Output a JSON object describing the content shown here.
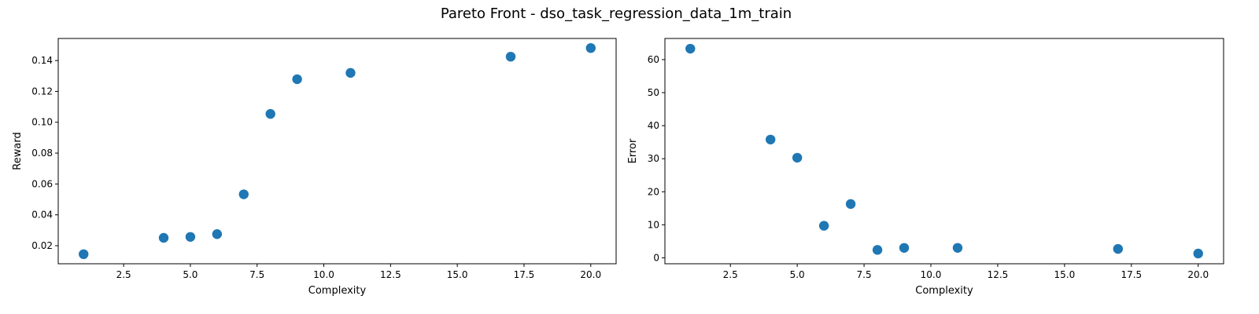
{
  "figure": {
    "title": "Pareto Front - dso_task_regression_data_1m_train"
  },
  "colors": {
    "marker": "#1f77b4",
    "axes": "#000000",
    "background": "#ffffff"
  },
  "chart_data": [
    {
      "type": "scatter",
      "title": "",
      "xlabel": "Complexity",
      "ylabel": "Reward",
      "grid": false,
      "xlim": [
        0.05,
        20.95
      ],
      "ylim": [
        0.0083,
        0.1543
      ],
      "xticks": [
        2.5,
        5.0,
        7.5,
        10.0,
        12.5,
        15.0,
        17.5,
        20.0
      ],
      "xtick_labels": [
        "2.5",
        "5.0",
        "7.5",
        "10.0",
        "12.5",
        "15.0",
        "17.5",
        "20.0"
      ],
      "yticks": [
        0.02,
        0.04,
        0.06,
        0.08,
        0.1,
        0.12,
        0.14
      ],
      "ytick_labels": [
        "0.02",
        "0.04",
        "0.06",
        "0.08",
        "0.10",
        "0.12",
        "0.14"
      ],
      "x": [
        1,
        4,
        5,
        6,
        7,
        8,
        9,
        11,
        17,
        20
      ],
      "y": [
        0.0145,
        0.0251,
        0.0257,
        0.0275,
        0.0533,
        0.1054,
        0.1279,
        0.132,
        0.1425,
        0.1481
      ]
    },
    {
      "type": "scatter",
      "title": "",
      "xlabel": "Complexity",
      "ylabel": "Error",
      "grid": false,
      "xlim": [
        0.05,
        20.95
      ],
      "ylim": [
        -1.8,
        66.4
      ],
      "xticks": [
        2.5,
        5.0,
        7.5,
        10.0,
        12.5,
        15.0,
        17.5,
        20.0
      ],
      "xtick_labels": [
        "2.5",
        "5.0",
        "7.5",
        "10.0",
        "12.5",
        "15.0",
        "17.5",
        "20.0"
      ],
      "yticks": [
        0,
        10,
        20,
        30,
        40,
        50,
        60
      ],
      "ytick_labels": [
        "0",
        "10",
        "20",
        "30",
        "40",
        "50",
        "60"
      ],
      "x": [
        1,
        4,
        5,
        6,
        7,
        8,
        9,
        11,
        17,
        20
      ],
      "y": [
        63.3,
        35.8,
        30.3,
        9.7,
        16.3,
        2.4,
        3.0,
        3.0,
        2.7,
        1.3
      ]
    }
  ]
}
